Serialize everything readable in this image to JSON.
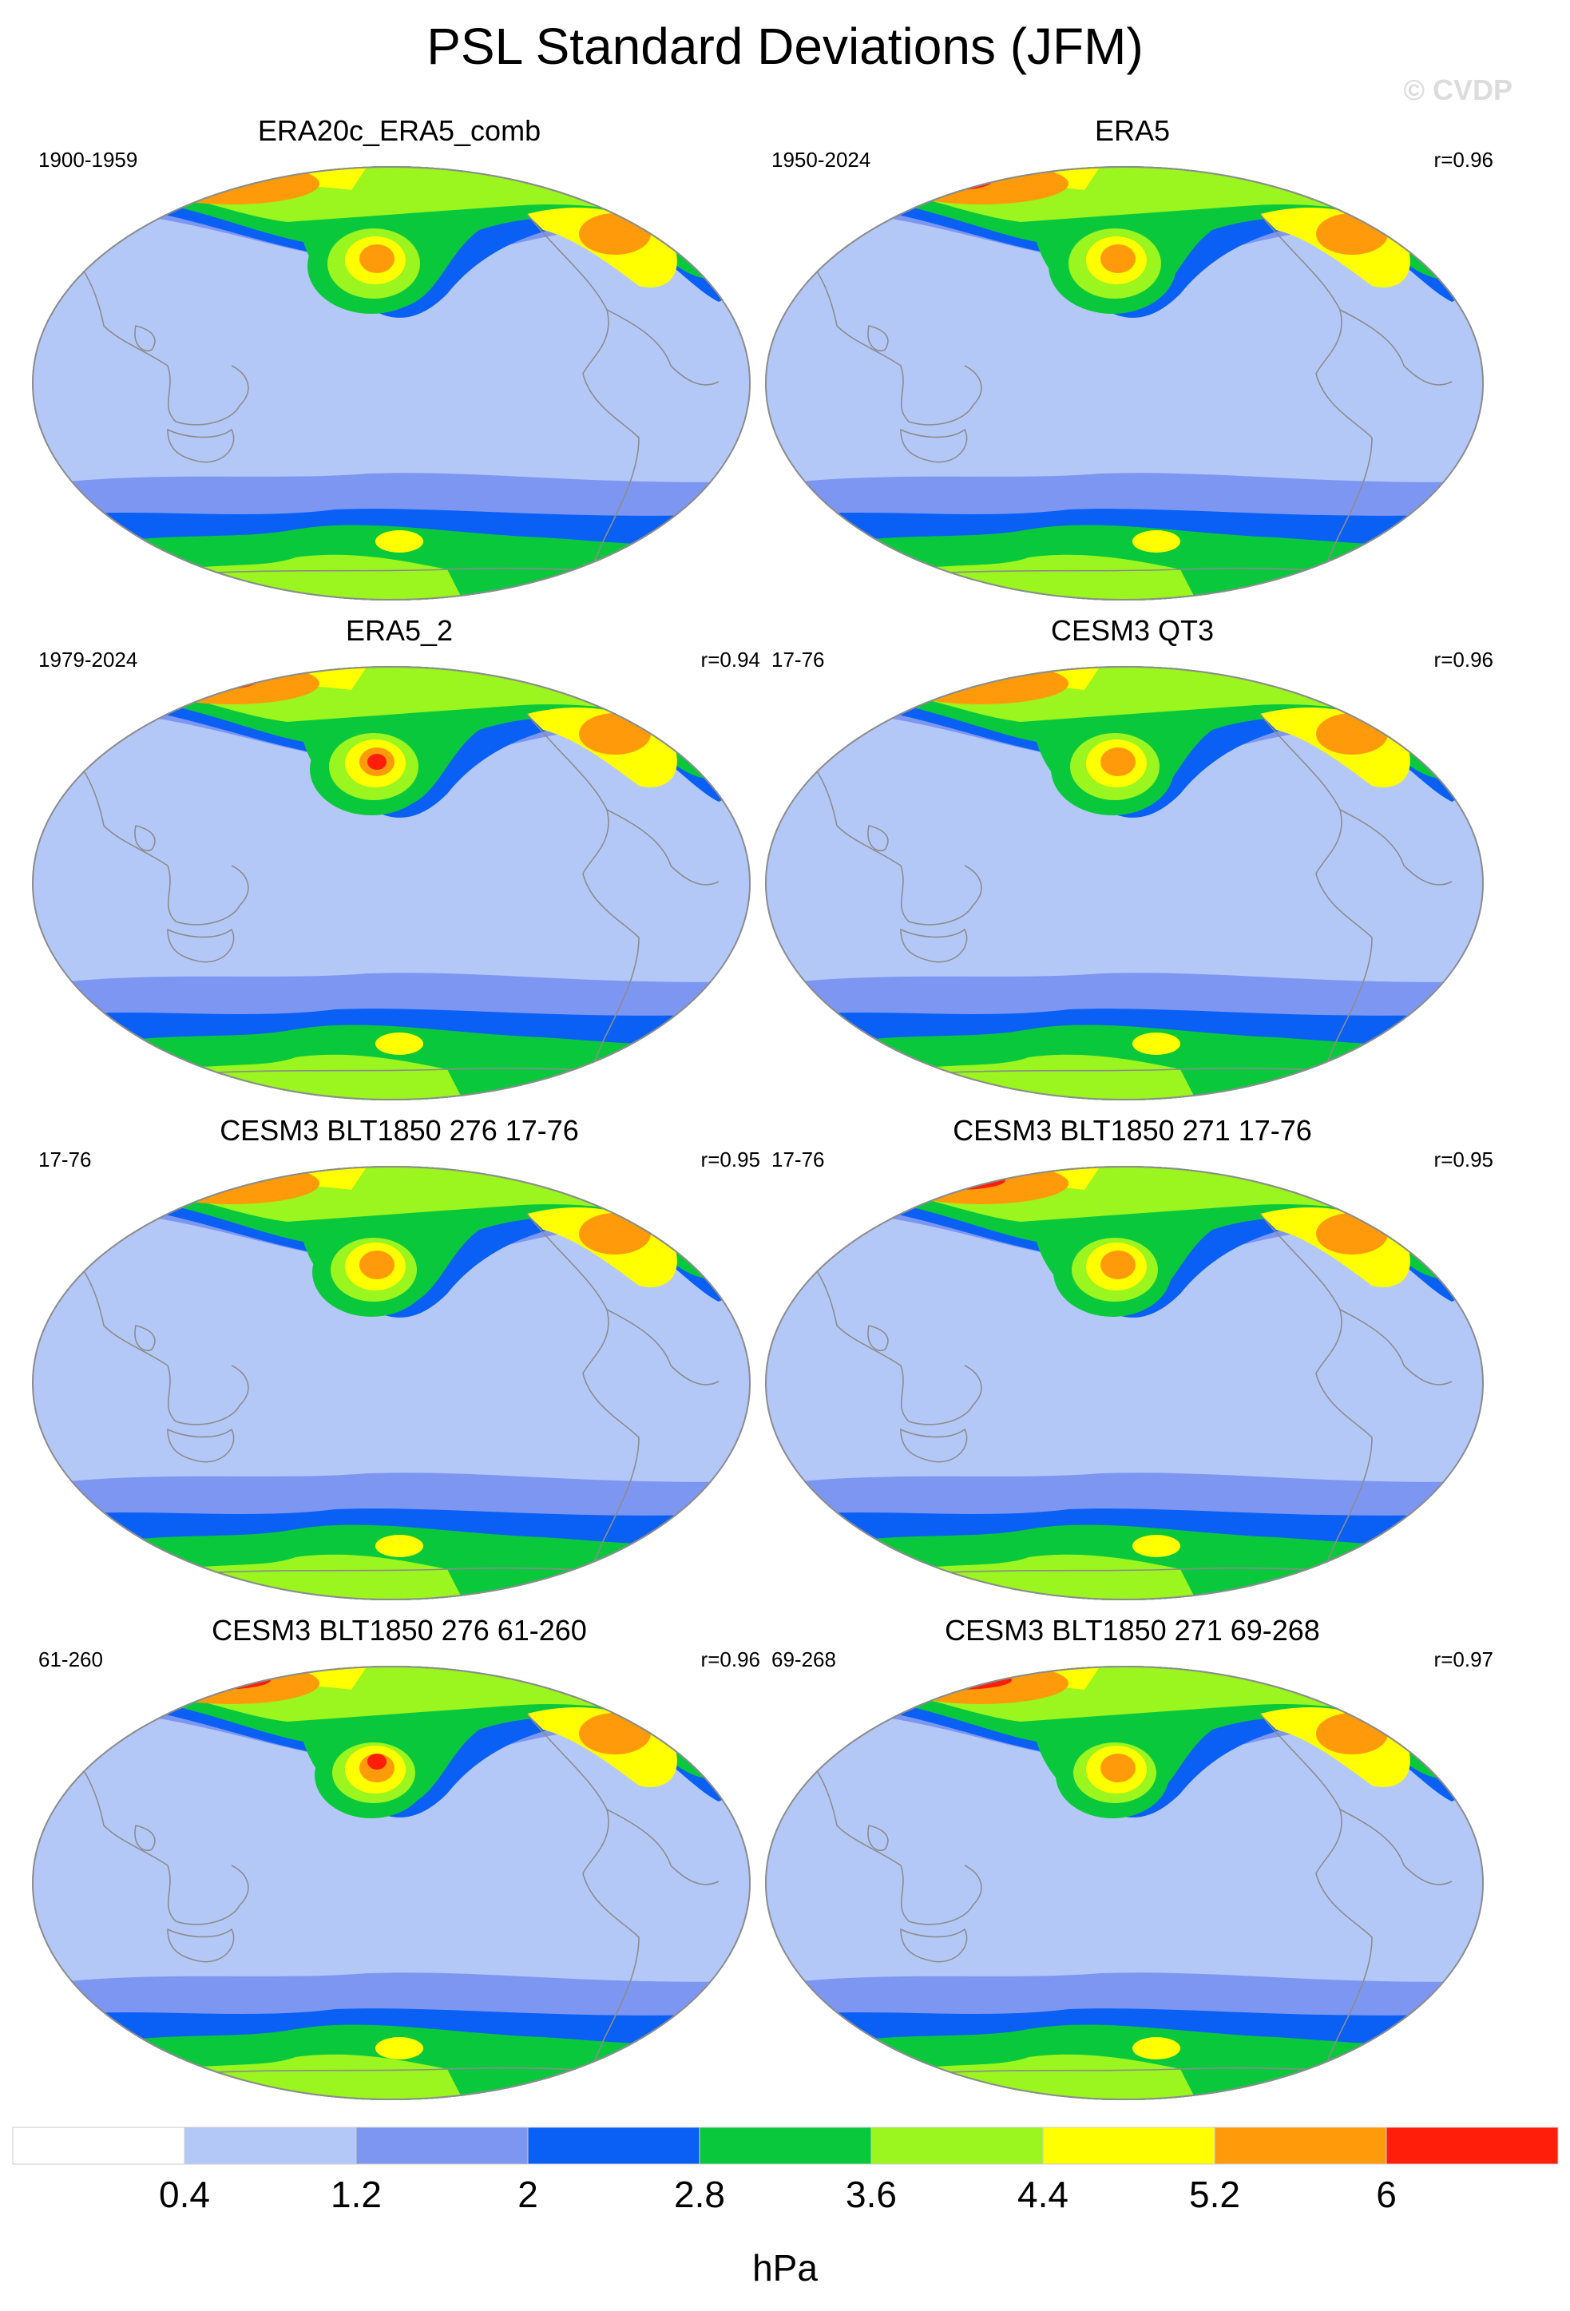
{
  "title": "PSL Standard Deviations (JFM)",
  "credit": "© CVDP",
  "panels": [
    {
      "title": "ERA20c_ERA5_comb",
      "period": "1900-1959",
      "corr": ""
    },
    {
      "title": "ERA5",
      "period": "1950-2024",
      "corr": "r=0.96"
    },
    {
      "title": "ERA5_2",
      "period": "1979-2024",
      "corr": "r=0.94"
    },
    {
      "title": "CESM3 QT3",
      "period": "17-76",
      "corr": "r=0.96"
    },
    {
      "title": "CESM3 BLT1850 276 17-76",
      "period": "17-76",
      "corr": "r=0.95"
    },
    {
      "title": "CESM3 BLT1850 271 17-76",
      "period": "17-76",
      "corr": "r=0.95"
    },
    {
      "title": "CESM3 BLT1850 276 61-260",
      "period": "61-260",
      "corr": "r=0.96"
    },
    {
      "title": "CESM3 BLT1850 271 69-268",
      "period": "69-268",
      "corr": "r=0.97"
    }
  ],
  "colorbar": {
    "unit": "hPa",
    "levels": [
      "0.4",
      "1.2",
      "2",
      "2.8",
      "3.6",
      "4.4",
      "5.2",
      "6"
    ],
    "colors": [
      "#ffffff",
      "#b4c8f8",
      "#7d96f2",
      "#0a5ff5",
      "#0ac83c",
      "#9bf51e",
      "#ffff00",
      "#ff9b0a",
      "#ff1e0a"
    ]
  },
  "map_style": {
    "ocean_base_color": "#b4c8f8",
    "coastline_color": "#8c8c8c",
    "outline_color": "#8c8c8c",
    "projection": "Robinson-like global, Pacific-centered"
  }
}
